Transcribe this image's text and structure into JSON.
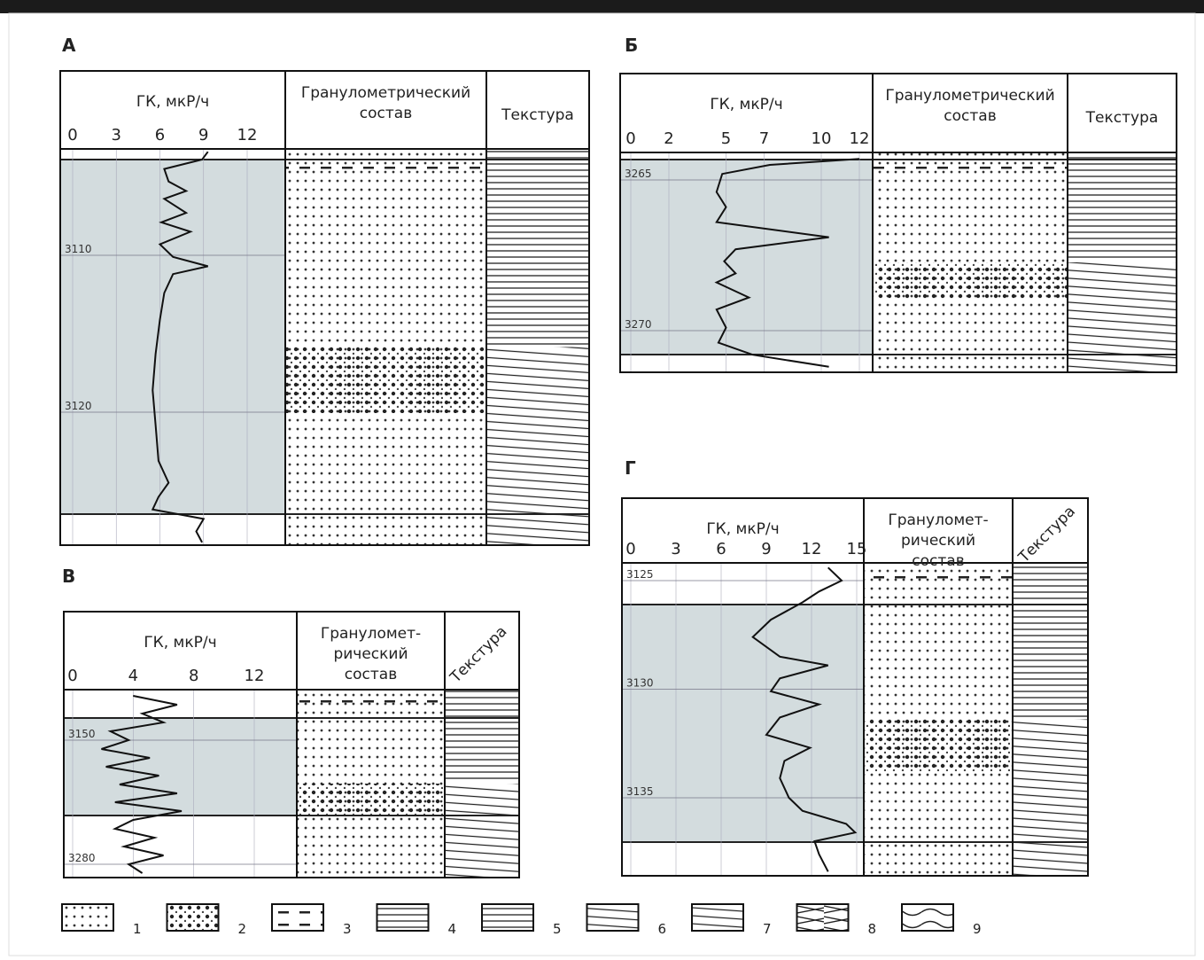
{
  "panels": [
    {
      "letter": "А",
      "gk_title": "ГК, мкР/ч",
      "gk_ticks": [
        0,
        3,
        6,
        9,
        12
      ],
      "granulometry_title": [
        "Гранулометрический",
        "состав"
      ],
      "texture_title": "Текстура",
      "depth_labels": [
        3110,
        3120
      ],
      "curve": {
        "depth": [
          3103.4,
          3103.9,
          3104.5,
          3105.3,
          3105.9,
          3106.4,
          3107.3,
          3107.9,
          3108.5,
          3109.3,
          3110.1,
          3110.7,
          3111.2,
          3112.4,
          3114.1,
          3116.3,
          3118.6,
          3120.8,
          3123.1,
          3124.5,
          3125.4,
          3126.2,
          3126.8,
          3127.6,
          3128.3
        ],
        "gk": [
          9.3,
          8.9,
          6.3,
          6.6,
          7.8,
          6.3,
          7.8,
          6.1,
          8.1,
          6.0,
          6.9,
          9.3,
          6.9,
          6.3,
          6.0,
          5.7,
          5.5,
          5.7,
          5.9,
          6.6,
          5.9,
          5.5,
          9.0,
          8.5,
          8.9
        ]
      }
    },
    {
      "letter": "Б",
      "gk_title": "ГК, мкР/ч",
      "gk_ticks": [
        0,
        2,
        5,
        7,
        10,
        12
      ],
      "granulometry_title": [
        "Гранулометрический",
        "состав"
      ],
      "texture_title": "Текстура",
      "depth_labels": [
        3265,
        3270
      ],
      "curve": {
        "depth": [
          3264.3,
          3264.5,
          3264.8,
          3265.4,
          3265.9,
          3266.4,
          3266.9,
          3267.3,
          3267.7,
          3268.1,
          3268.4,
          3268.9,
          3269.3,
          3269.9,
          3270.4,
          3270.8,
          3271.2
        ],
        "gk": [
          12,
          7.3,
          4.8,
          4.5,
          5.0,
          4.5,
          10.4,
          5.5,
          4.9,
          5.5,
          4.5,
          6.2,
          4.5,
          5.0,
          4.6,
          6.4,
          10.4
        ]
      }
    },
    {
      "letter": "В",
      "gk_title": "ГК, мкР/ч",
      "gk_ticks": [
        0,
        4,
        8,
        12
      ],
      "granulometry_title": [
        "Грануломет-",
        "рический",
        "состав"
      ],
      "texture_title": "Текстура",
      "depth_labels": [
        3150,
        3280
      ],
      "curve": {
        "depth": [
          3103.6,
          3112.9,
          3122.1,
          3131.4,
          3140.7,
          3150,
          3159.3,
          3168.6,
          3177.9,
          3187.1,
          3196.4,
          3205.7,
          3215,
          3224.3,
          3233.6,
          3242.9,
          3252.1,
          3261.4,
          3270.7,
          3280,
          3289.3
        ],
        "gk": [
          4.0,
          6.9,
          4.6,
          6.0,
          2.5,
          3.7,
          1.9,
          5.1,
          2.2,
          5.7,
          3.1,
          6.9,
          2.8,
          7.2,
          4.0,
          2.8,
          5.4,
          3.4,
          6.0,
          3.7,
          4.6
        ]
      }
    },
    {
      "letter": "Г",
      "gk_title": "ГК, мкР/ч",
      "gk_ticks": [
        0,
        3,
        6,
        9,
        12,
        15
      ],
      "granulometry_title": [
        "Грануломет-",
        "рический",
        "состав"
      ],
      "texture_title": "Текстура",
      "depth_labels": [
        3125,
        3130,
        3135
      ],
      "curve": {
        "depth": [
          3124.4,
          3125,
          3125.5,
          3126,
          3126.8,
          3127.6,
          3128.5,
          3128.9,
          3129.5,
          3130.1,
          3130.7,
          3131.3,
          3132.1,
          3132.7,
          3133.3,
          3134.1,
          3135,
          3135.6,
          3136.2,
          3136.6,
          3137,
          3137.6,
          3138.4
        ],
        "gk": [
          13.1,
          14.0,
          12.5,
          11.4,
          9.3,
          8.1,
          9.9,
          13.1,
          9.9,
          9.3,
          12.5,
          9.9,
          9.0,
          11.9,
          10.2,
          9.9,
          10.5,
          11.4,
          14.3,
          14.9,
          12.2,
          12.5,
          13.1
        ]
      }
    }
  ],
  "legend": [
    "1",
    "2",
    "3",
    "4",
    "5",
    "6",
    "7",
    "8",
    "9"
  ]
}
